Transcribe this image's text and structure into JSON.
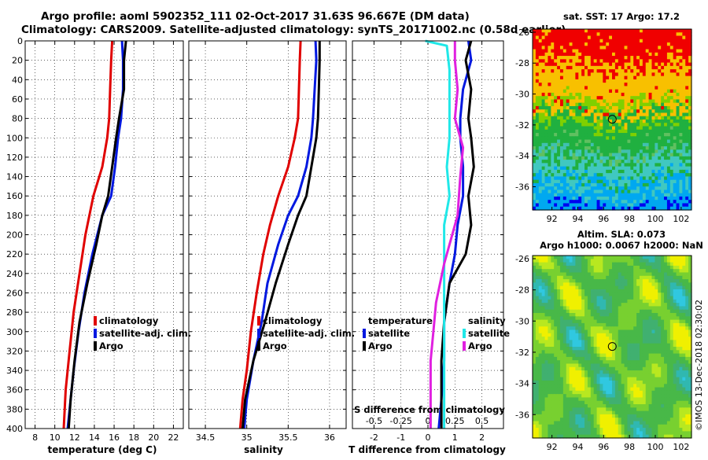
{
  "title": {
    "line1": "Argo profile: aoml 5902352_111 02-Oct-2017 31.63S 96.667E (DM data)",
    "line2": "Climatology: CARS2009. Satellite-adjusted climatology: synTS_20171002.nc (0.58d earlier)"
  },
  "colors": {
    "climatology": "#e00000",
    "satellite": "#0018e0",
    "argo": "#000000",
    "cyan": "#20e8e8",
    "magenta": "#e020e0"
  },
  "chart_data": [
    {
      "type": "line",
      "panel": "temperature",
      "xlabel": "temperature (deg C)",
      "ylabel": "depth",
      "xlim": [
        7,
        23
      ],
      "ylim": [
        400,
        0
      ],
      "xticks": [
        "8",
        "10",
        "12",
        "14",
        "16",
        "18",
        "20",
        "22"
      ],
      "yticks": [
        "0",
        "20",
        "40",
        "60",
        "80",
        "100",
        "120",
        "140",
        "160",
        "180",
        "200",
        "220",
        "240",
        "260",
        "280",
        "300",
        "320",
        "340",
        "360",
        "380",
        "400"
      ],
      "legend": [
        "climatology",
        "satellite-adj. clim.",
        "Argo"
      ],
      "series": [
        {
          "name": "climatology",
          "color": "#e00000",
          "x": [
            15.8,
            15.7,
            15.6,
            15.5,
            15.3,
            14.8,
            13.9,
            13.1,
            12.5,
            11.9,
            11.5,
            11.1,
            10.9
          ],
          "y": [
            0,
            20,
            50,
            80,
            100,
            130,
            160,
            200,
            240,
            280,
            320,
            360,
            400
          ]
        },
        {
          "name": "satellite-adj. clim.",
          "color": "#0018e0",
          "x": [
            16.8,
            16.9,
            16.9,
            16.7,
            16.4,
            16.1,
            15.7,
            14.8,
            13.8,
            13.0,
            12.4,
            11.9,
            11.6,
            11.3
          ],
          "y": [
            0,
            20,
            50,
            80,
            100,
            130,
            160,
            180,
            220,
            260,
            300,
            340,
            370,
            400
          ]
        },
        {
          "name": "Argo",
          "color": "#000000",
          "x": [
            17.2,
            17.0,
            17.0,
            16.5,
            16.2,
            15.8,
            15.4,
            14.8,
            14.2,
            13.3,
            12.5,
            12.0,
            11.6,
            11.4
          ],
          "y": [
            0,
            20,
            50,
            80,
            100,
            130,
            160,
            180,
            210,
            250,
            290,
            330,
            370,
            400
          ]
        }
      ]
    },
    {
      "type": "line",
      "panel": "salinity",
      "xlabel": "salinity",
      "ylabel": "depth",
      "xlim": [
        34.3,
        36.2
      ],
      "ylim": [
        400,
        0
      ],
      "xticks": [
        "34.5",
        "35",
        "35.5",
        "36"
      ],
      "legend": [
        "climatology",
        "satellite-adj. clim.",
        "Argo"
      ],
      "series": [
        {
          "name": "climatology",
          "color": "#e00000",
          "x": [
            35.65,
            35.64,
            35.63,
            35.62,
            35.58,
            35.5,
            35.38,
            35.28,
            35.2,
            35.12,
            35.05,
            35.0,
            34.95,
            34.92
          ],
          "y": [
            0,
            20,
            50,
            80,
            100,
            130,
            160,
            190,
            220,
            260,
            300,
            340,
            370,
            400
          ]
        },
        {
          "name": "satellite-adj. clim.",
          "color": "#0018e0",
          "x": [
            35.83,
            35.84,
            35.82,
            35.8,
            35.78,
            35.72,
            35.62,
            35.5,
            35.38,
            35.25,
            35.18,
            35.08,
            35.0,
            34.97
          ],
          "y": [
            0,
            20,
            50,
            80,
            100,
            130,
            160,
            180,
            210,
            250,
            290,
            330,
            370,
            400
          ]
        },
        {
          "name": "Argo",
          "color": "#000000",
          "x": [
            35.88,
            35.88,
            35.87,
            35.86,
            35.84,
            35.78,
            35.72,
            35.62,
            35.5,
            35.35,
            35.22,
            35.08,
            34.98,
            34.95
          ],
          "y": [
            0,
            20,
            50,
            80,
            100,
            130,
            160,
            180,
            210,
            250,
            290,
            330,
            370,
            400
          ]
        }
      ]
    },
    {
      "type": "line",
      "panel": "difference",
      "xlabel": "T difference from climatology",
      "xlabel_top": "S difference from climatology",
      "ylabel": "depth",
      "xlim": [
        -2.8,
        2.8
      ],
      "ylim": [
        400,
        0
      ],
      "xticks": [
        "-2",
        "-1",
        "0",
        "1",
        "2"
      ],
      "xticks_top": [
        "-0.5",
        "-0.25",
        "0",
        "0.25",
        "0.5"
      ],
      "legend_temperature": [
        "temperature",
        "satellite",
        "Argo"
      ],
      "legend_salinity": [
        "salinity",
        "satellite",
        "Argo"
      ],
      "series": [
        {
          "name": "temperature satellite",
          "color": "#0018e0",
          "x": [
            1.5,
            1.6,
            1.3,
            1.2,
            1.2,
            1.3,
            1.3,
            1.1,
            1.0,
            0.8,
            0.6,
            0.6,
            0.5,
            0.4
          ],
          "y": [
            0,
            20,
            50,
            80,
            100,
            130,
            160,
            190,
            220,
            250,
            290,
            330,
            370,
            400
          ]
        },
        {
          "name": "temperature Argo",
          "color": "#000000",
          "x": [
            1.6,
            1.4,
            1.6,
            1.5,
            1.6,
            1.7,
            1.5,
            1.6,
            1.4,
            0.8,
            0.6,
            0.5,
            0.5,
            0.5
          ],
          "y": [
            0,
            20,
            50,
            80,
            100,
            130,
            160,
            190,
            220,
            250,
            290,
            330,
            370,
            400
          ]
        },
        {
          "name": "salinity satellite",
          "color": "#20e8e8",
          "x": [
            -0.1,
            0.7,
            0.8,
            0.8,
            0.8,
            0.7,
            0.8,
            0.6,
            0.6,
            0.6,
            0.6,
            0.6,
            0.6,
            0.6
          ],
          "y": [
            0,
            5,
            30,
            60,
            100,
            130,
            160,
            190,
            220,
            260,
            300,
            340,
            370,
            400
          ]
        },
        {
          "name": "salinity Argo",
          "color": "#e020e0",
          "x": [
            1.0,
            1.0,
            1.1,
            1.0,
            1.3,
            1.2,
            1.1,
            0.6,
            0.3,
            0.2,
            0.1,
            0.1,
            0.1
          ],
          "y": [
            0,
            20,
            50,
            80,
            110,
            140,
            180,
            230,
            270,
            300,
            330,
            370,
            400
          ]
        }
      ]
    },
    {
      "type": "heatmap",
      "panel": "sst-map",
      "title": "sat. SST: 17 Argo: 17.2",
      "xticks": [
        "92",
        "94",
        "96",
        "98",
        "100",
        "102"
      ],
      "yticks": [
        "-26",
        "-28",
        "-30",
        "-32",
        "-34",
        "-36"
      ],
      "xlim": [
        90.5,
        102.8
      ],
      "ylim": [
        -37.5,
        -25.8
      ],
      "marker": {
        "lon": 96.667,
        "lat": -31.63
      }
    },
    {
      "type": "heatmap",
      "panel": "sla-map",
      "title": "Altim. SLA: 0.073",
      "subtitle": "Argo h1000: 0.0067 h2000: NaN",
      "xticks": [
        "92",
        "94",
        "96",
        "98",
        "100",
        "102"
      ],
      "yticks": [
        "-26",
        "-28",
        "-30",
        "-32",
        "-34",
        "-36"
      ],
      "xlim": [
        90.5,
        102.8
      ],
      "ylim": [
        -37.5,
        -25.8
      ],
      "marker": {
        "lon": 96.667,
        "lat": -31.63
      }
    }
  ],
  "legend_labels": {
    "climatology": "climatology",
    "satellite_adj": "satellite-adj. clim.",
    "argo": "Argo",
    "temperature": "temperature",
    "salinity": "salinity",
    "satellite": "satellite"
  },
  "watermark": "©IMOS 13-Dec-2018 02:30:02"
}
